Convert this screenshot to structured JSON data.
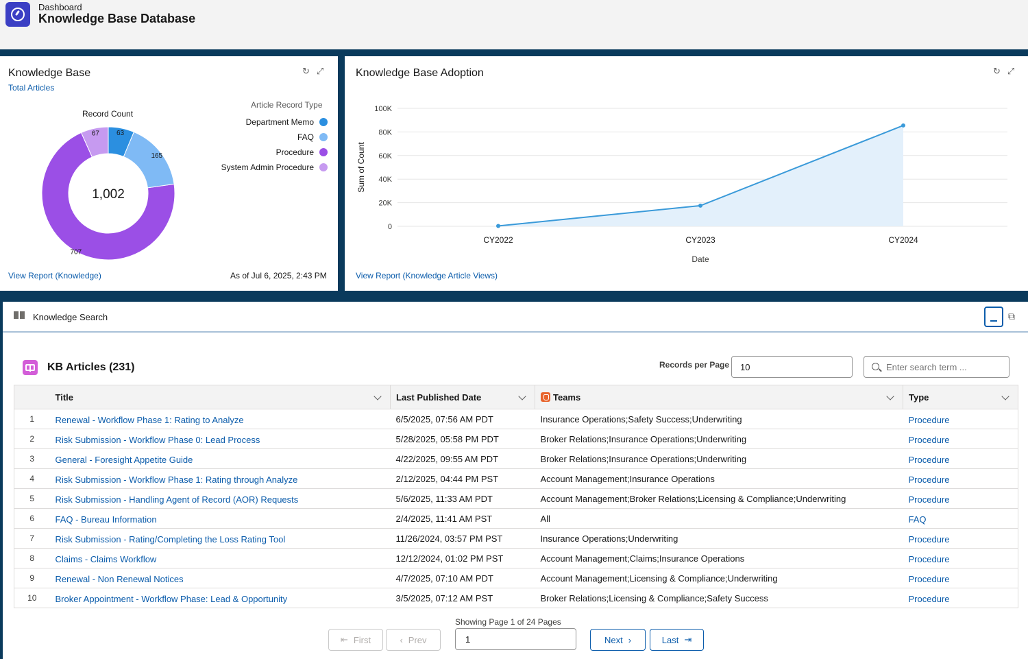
{
  "header": {
    "breadcrumb": "Dashboard",
    "title": "Knowledge Base Database"
  },
  "kb_card": {
    "title": "Knowledge Base",
    "subtitle": "Total Articles",
    "donut_label": "Record Count",
    "total": "1,002",
    "legend_title": "Article Record Type",
    "report_link": "View Report (Knowledge)",
    "as_of": "As of Jul 6, 2025, 2:43 PM"
  },
  "adoption_card": {
    "title": "Knowledge Base Adoption",
    "report_link": "View Report (Knowledge Article Views)"
  },
  "chart_data": [
    {
      "type": "pie",
      "title": "Record Count",
      "legend_title": "Article Record Type",
      "legend_position": "right",
      "center_label": "1,002",
      "slices": [
        {
          "label": "Department Memo",
          "value": 63,
          "color": "#2b8fe0"
        },
        {
          "label": "FAQ",
          "value": 165,
          "color": "#7fbaf5"
        },
        {
          "label": "Procedure",
          "value": 707,
          "color": "#9b4fe6"
        },
        {
          "label": "System Admin Procedure",
          "value": 67,
          "color": "#c69af0"
        }
      ]
    },
    {
      "type": "area",
      "title": "",
      "xlabel": "Date",
      "ylabel": "Sum of Count",
      "categories": [
        "CY2022",
        "CY2023",
        "CY2024"
      ],
      "values": [
        300,
        17500,
        85500
      ],
      "ylim": [
        0,
        100000
      ],
      "yticks": [
        0,
        20000,
        40000,
        60000,
        80000,
        100000
      ],
      "ytick_labels": [
        "0",
        "20K",
        "40K",
        "60K",
        "80K",
        "100K"
      ],
      "grid": true,
      "color": "#3a9ad9",
      "fill": "#e3f0fb"
    }
  ],
  "search": {
    "panel_title": "Knowledge Search",
    "heading": "KB Articles (231)",
    "rpp_label": "Records per Page",
    "rpp_value": "10",
    "search_placeholder": "Enter search term ...",
    "columns": [
      "Title",
      "Last Published Date",
      "Teams",
      "Type"
    ],
    "rows": [
      {
        "n": "1",
        "title": "Renewal - Workflow Phase 1: Rating to Analyze",
        "date": "6/5/2025, 07:56 AM PDT",
        "teams": "Insurance Operations;Safety Success;Underwriting",
        "type": "Procedure"
      },
      {
        "n": "2",
        "title": "Risk Submission - Workflow Phase 0: Lead Process",
        "date": "5/28/2025, 05:58 PM PDT",
        "teams": "Broker Relations;Insurance Operations;Underwriting",
        "type": "Procedure"
      },
      {
        "n": "3",
        "title": "General - Foresight Appetite Guide",
        "date": "4/22/2025, 09:55 AM PDT",
        "teams": "Broker Relations;Insurance Operations;Underwriting",
        "type": "Procedure"
      },
      {
        "n": "4",
        "title": "Risk Submission - Workflow Phase 1: Rating through Analyze",
        "date": "2/12/2025, 04:44 PM PST",
        "teams": "Account Management;Insurance Operations",
        "type": "Procedure"
      },
      {
        "n": "5",
        "title": "Risk Submission - Handling Agent of Record (AOR) Requests",
        "date": "5/6/2025, 11:33 AM PDT",
        "teams": "Account Management;Broker Relations;Licensing & Compliance;Underwriting",
        "type": "Procedure"
      },
      {
        "n": "6",
        "title": "FAQ - Bureau Information",
        "date": "2/4/2025, 11:41 AM PST",
        "teams": "All",
        "type": "FAQ"
      },
      {
        "n": "7",
        "title": "Risk Submission - Rating/Completing the Loss Rating Tool",
        "date": "11/26/2024, 03:57 PM PST",
        "teams": "Insurance Operations;Underwriting",
        "type": "Procedure"
      },
      {
        "n": "8",
        "title": "Claims - Claims Workflow",
        "date": "12/12/2024, 01:02 PM PST",
        "teams": "Account Management;Claims;Insurance Operations",
        "type": "Procedure"
      },
      {
        "n": "9",
        "title": "Renewal - Non Renewal Notices",
        "date": "4/7/2025, 07:10 AM PDT",
        "teams": "Account Management;Licensing & Compliance;Underwriting",
        "type": "Procedure"
      },
      {
        "n": "10",
        "title": "Broker Appointment - Workflow Phase: Lead & Opportunity",
        "date": "3/5/2025, 07:12 AM PST",
        "teams": "Broker Relations;Licensing & Compliance;Safety Success",
        "type": "Procedure"
      }
    ],
    "pager": {
      "info": "Showing Page 1 of 24 Pages",
      "page_value": "1",
      "first": "First",
      "prev": "Prev",
      "next": "Next",
      "last": "Last"
    }
  }
}
